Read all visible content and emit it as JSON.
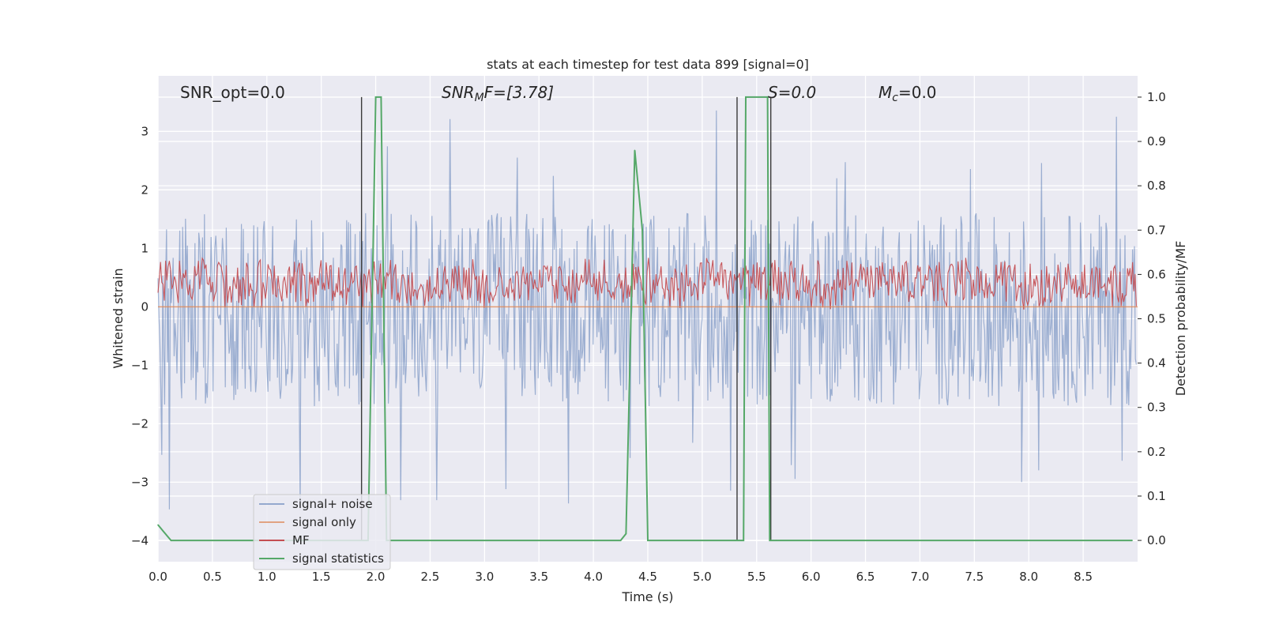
{
  "chart_data": {
    "type": "line",
    "title": "stats at each timestep for test data 899 [signal=0]",
    "xlabel": "Time (s)",
    "ylabel": "Whitened strain",
    "y2label": "Detection probability/MF",
    "xlim": [
      0.0,
      9.0
    ],
    "ylim": [
      -4.36,
      3.95
    ],
    "y2lim": [
      -0.048,
      1.048
    ],
    "xticks": [
      "0.0",
      "0.5",
      "1.0",
      "1.5",
      "2.0",
      "2.5",
      "3.0",
      "3.5",
      "4.0",
      "4.5",
      "5.0",
      "5.5",
      "6.0",
      "6.5",
      "7.0",
      "7.5",
      "8.0",
      "8.5"
    ],
    "xtick_values": [
      0.0,
      0.5,
      1.0,
      1.5,
      2.0,
      2.5,
      3.0,
      3.5,
      4.0,
      4.5,
      5.0,
      5.5,
      6.0,
      6.5,
      7.0,
      7.5,
      8.0,
      8.5
    ],
    "yticks": [
      "3",
      "2",
      "1",
      "0",
      "−1",
      "−2",
      "−3",
      "−4"
    ],
    "ytick_values": [
      3,
      2,
      1,
      0,
      -1,
      -2,
      -3,
      -4
    ],
    "y2ticks": [
      "1.0",
      "0.9",
      "0.8",
      "0.7",
      "0.6",
      "0.5",
      "0.4",
      "0.3",
      "0.2",
      "0.1",
      "0.0"
    ],
    "y2tick_values": [
      1.0,
      0.9,
      0.8,
      0.7,
      0.6,
      0.5,
      0.4,
      0.3,
      0.2,
      0.1,
      0.0
    ],
    "annotations": {
      "snr_opt": "SNR_opt=0.0",
      "snr_mf_base": "SNR",
      "snr_mf_sub": "M",
      "snr_mf_tail": "F=[3.78]",
      "s": "S=0.0",
      "mc_base": "M",
      "mc_sub": "c",
      "mc_tail": "=0.0"
    },
    "legend": {
      "placement": "lower-left",
      "entries": [
        "signal+ noise",
        "signal only",
        "MF",
        "signal statistics"
      ]
    },
    "series": [
      {
        "name": "signal+ noise",
        "axis": "left",
        "color": "#4c72b0",
        "style": "noise",
        "band": [
          -1.7,
          1.6
        ],
        "extremes": [
          3.4,
          -4.0
        ]
      },
      {
        "name": "signal only",
        "axis": "left",
        "color": "#dd8452",
        "values_x": [
          0.0,
          9.0
        ],
        "values_y": [
          0.0,
          0.0
        ]
      },
      {
        "name": "MF",
        "axis": "right",
        "color": "#c44e52",
        "style": "noise",
        "band": [
          0.52,
          0.64
        ],
        "extremes": [
          0.66,
          0.51
        ]
      },
      {
        "name": "signal statistics",
        "axis": "right",
        "color": "#55a868",
        "values_x": [
          0.0,
          0.05,
          0.12,
          1.87,
          1.93,
          2.0,
          2.05,
          2.1,
          4.25,
          4.3,
          4.38,
          4.45,
          4.5,
          5.3,
          5.38,
          5.4,
          5.6,
          5.62,
          5.68,
          8.95
        ],
        "values_y": [
          0.035,
          0.02,
          0.0,
          0.0,
          0.0,
          1.0,
          1.0,
          0.0,
          0.0,
          0.015,
          0.88,
          0.7,
          0.0,
          0.0,
          0.0,
          1.0,
          1.0,
          0.0,
          0.0,
          0.0
        ]
      }
    ],
    "threshold_lines": [
      1.87,
      5.32,
      5.63
    ]
  }
}
